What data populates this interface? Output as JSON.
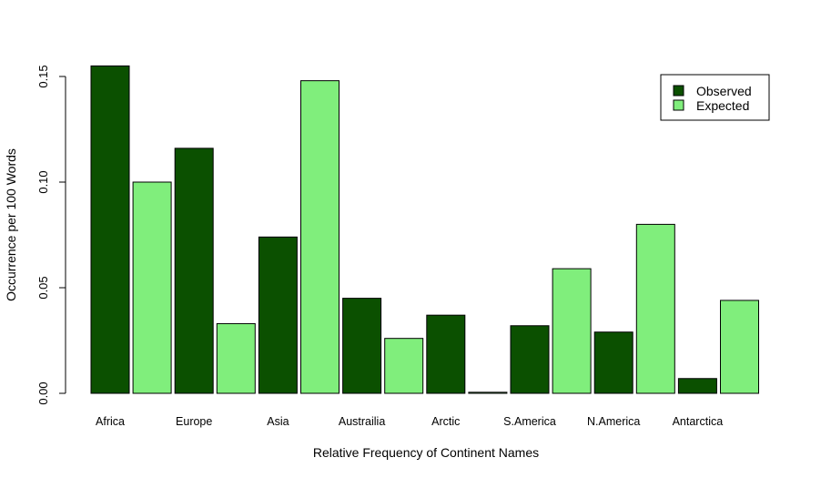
{
  "chart_data": {
    "type": "bar",
    "title": "",
    "xlabel": "Relative Frequency of Continent Names",
    "ylabel": "Occurrence per 100 Words",
    "ylim": [
      0,
      0.155
    ],
    "yticks": [
      "0.00",
      "0.05",
      "0.10",
      "0.15"
    ],
    "ytick_values": [
      0,
      0.05,
      0.1,
      0.15
    ],
    "grid": false,
    "legend_position": "top-right",
    "categories": [
      "Africa",
      "Europe",
      "Asia",
      "Austrailia",
      "Arctic",
      "S.America",
      "N.America",
      "Antarctica"
    ],
    "series": [
      {
        "name": "Observed",
        "color": "#0b5000",
        "values": [
          0.155,
          0.116,
          0.074,
          0.045,
          0.037,
          0.032,
          0.029,
          0.007
        ]
      },
      {
        "name": "Expected",
        "color": "#80ee7c",
        "values": [
          0.1,
          0.033,
          0.148,
          0.026,
          0.0005,
          0.059,
          0.08,
          0.044
        ]
      }
    ]
  }
}
